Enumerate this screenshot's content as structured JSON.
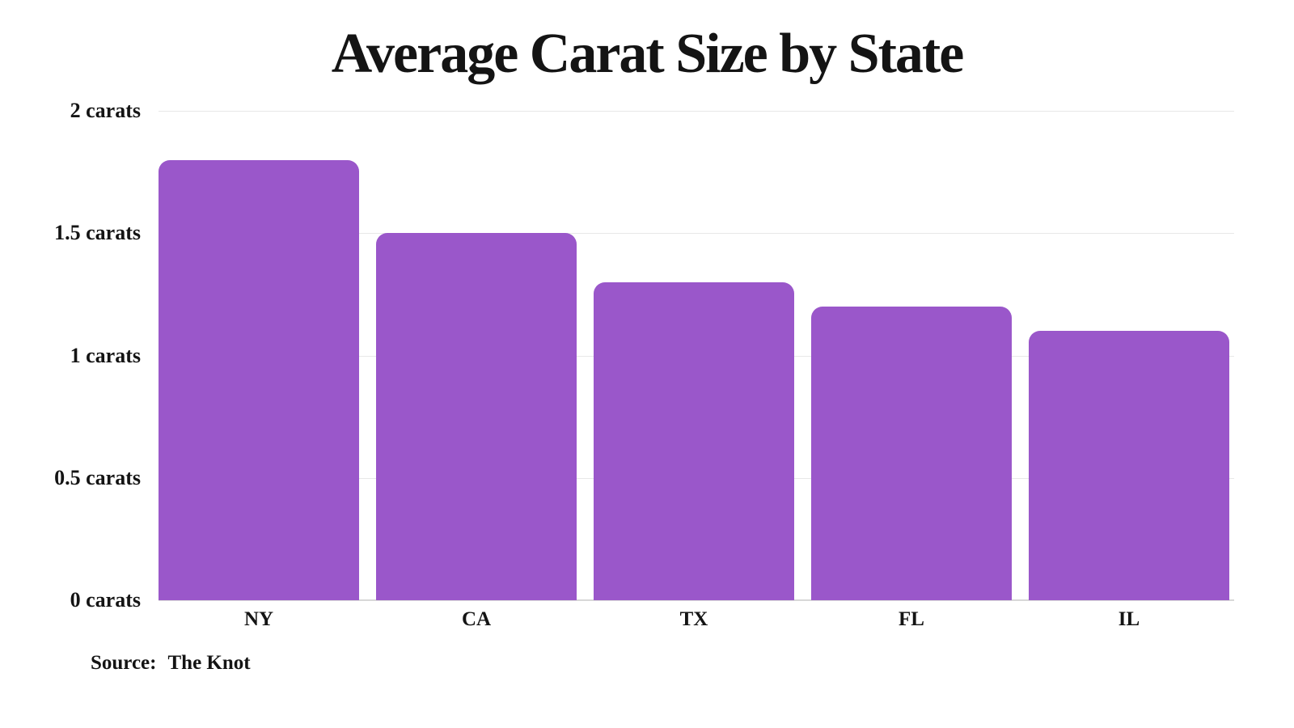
{
  "page": {
    "background_color": "#ffffff",
    "text_color": "#141414"
  },
  "chart_data": {
    "type": "bar",
    "title": "Average Carat Size by State",
    "categories": [
      "NY",
      "CA",
      "TX",
      "FL",
      "IL"
    ],
    "values": [
      1.8,
      1.5,
      1.3,
      1.2,
      1.1
    ],
    "unit": "carats",
    "xlabel": "",
    "ylabel": "",
    "ylim": [
      0,
      2
    ],
    "yticks": [
      {
        "value": 2,
        "label": "2 carats"
      },
      {
        "value": 1.5,
        "label": "1.5 carats"
      },
      {
        "value": 1,
        "label": "1 carats"
      },
      {
        "value": 0.5,
        "label": "0.5 carats"
      },
      {
        "value": 0,
        "label": "0 carats"
      }
    ],
    "grid": "horizontal",
    "legend": "none",
    "bar_color": "#9a57ca",
    "grid_color": "#e8e8e8",
    "baseline_color": "#d8d8d8",
    "source_label": "Source:",
    "source_value": "The Knot"
  }
}
